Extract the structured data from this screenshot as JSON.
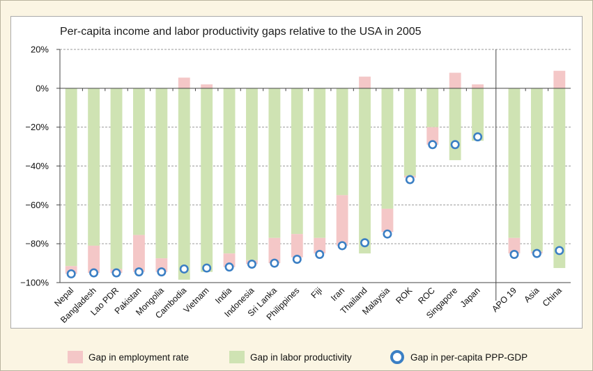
{
  "chart_data": {
    "type": "bar",
    "title": "Per-capita income and labor productivity gaps relative to the USA in 2005",
    "xlabel": "",
    "ylabel": "",
    "ylim": [
      -100,
      20
    ],
    "yticks": [
      20,
      0,
      -20,
      -40,
      -60,
      -80,
      -100
    ],
    "ytick_labels": [
      "20%",
      "0%",
      "−20%",
      "−40%",
      "−60%",
      "−80%",
      "−100%"
    ],
    "grid": true,
    "legend_position": "bottom",
    "categories": [
      "Nepal",
      "Bangladesh",
      "Lao PDR",
      "Pakistan",
      "Mongolia",
      "Cambodia",
      "Vietnam",
      "India",
      "Indonesia",
      "Sri Lanka",
      "Philippines",
      "Fiji",
      "Iran",
      "Thailand",
      "Malaysia",
      "ROK",
      "ROC",
      "Singapore",
      "Japan",
      "APO 19",
      "Asia",
      "China"
    ],
    "group_separator_after": "Japan",
    "series": [
      {
        "name": "Gap in employment rate",
        "color": "#f4c7c7",
        "values": [
          -4,
          -14,
          -2,
          -19,
          -7,
          5.5,
          2,
          -7,
          -2,
          -13,
          -12,
          -8,
          -26,
          6,
          -12,
          -1,
          -9,
          8,
          2,
          -8,
          -1,
          9
        ]
      },
      {
        "name": "Gap in labor productivity",
        "color": "#cfe3b3",
        "values": [
          -91.5,
          -81,
          -93,
          -75.5,
          -87.5,
          -98.5,
          -94.5,
          -85,
          -88.5,
          -77,
          -75,
          -77,
          -55,
          -85,
          -62,
          -45,
          -20,
          -37,
          -27,
          -77,
          -84,
          -92.5
        ]
      },
      {
        "name": "Gap in per-capita PPP-GDP",
        "color": "#3b7fc4",
        "values": [
          -95.5,
          -95,
          -95,
          -94.5,
          -94.5,
          -93,
          -92.5,
          -92,
          -90.5,
          -90,
          -88,
          -85.5,
          -81,
          -79.5,
          -75,
          -47,
          -29,
          -29,
          -25,
          -85.5,
          -85,
          -83.5
        ]
      }
    ]
  }
}
